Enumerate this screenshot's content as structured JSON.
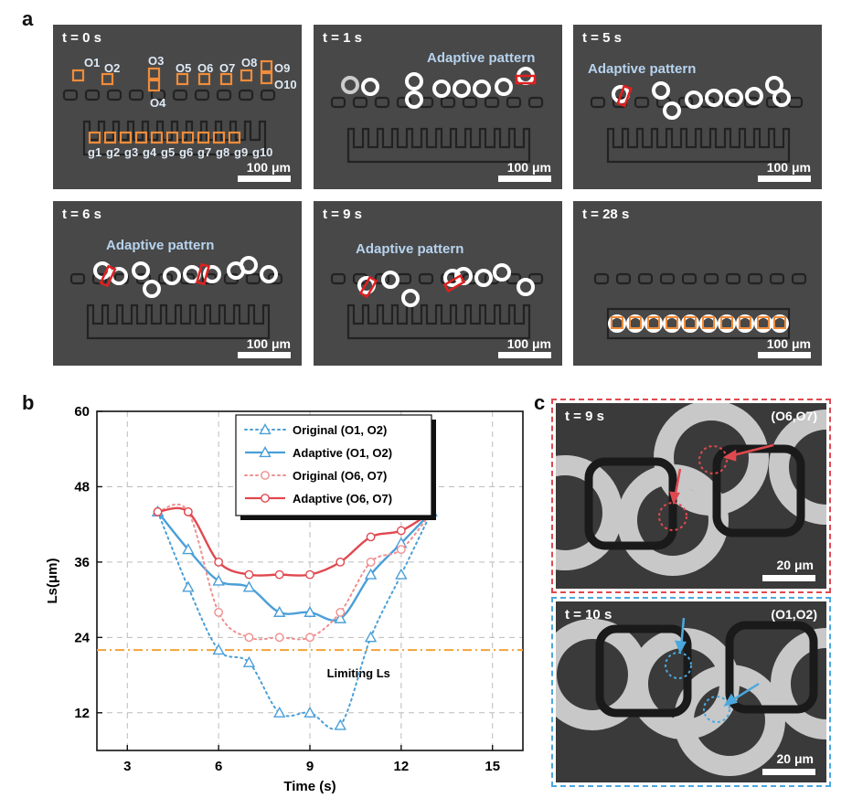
{
  "panel_letters": {
    "a": "a",
    "b": "b",
    "c": "c"
  },
  "panel_a": {
    "frames": [
      {
        "time": "t = 0 s",
        "label": "",
        "scale": "100 μm"
      },
      {
        "time": "t = 1 s",
        "label": "Adaptive pattern",
        "scale": "100 μm"
      },
      {
        "time": "t = 5 s",
        "label": "Adaptive pattern",
        "scale": "100 μm"
      },
      {
        "time": "t = 6 s",
        "label": "Adaptive pattern",
        "scale": "100 μm"
      },
      {
        "time": "t = 9 s",
        "label": "Adaptive pattern",
        "scale": "100 μm"
      },
      {
        "time": "t = 28 s",
        "label": "",
        "scale": "100 μm"
      }
    ],
    "object_labels": [
      "O1",
      "O2",
      "O3",
      "O4",
      "O5",
      "O6",
      "O7",
      "O8",
      "O9",
      "O10"
    ],
    "gap_labels": [
      "g1",
      "g2",
      "g3",
      "g4",
      "g5",
      "g6",
      "g7",
      "g8",
      "g9",
      "g10"
    ],
    "colors": {
      "box": "#f08c3a",
      "bar": "#e02020",
      "ring": "#ffffff",
      "background": "#484848"
    }
  },
  "panel_c": {
    "top": {
      "time": "t = 9 s",
      "pair": "(O6,O7)",
      "scale": "20 μm",
      "frame_color": "#e0494f"
    },
    "bottom": {
      "time": "t = 10 s",
      "pair": "(O1,O2)",
      "scale": "20 μm",
      "frame_color": "#4aa8df"
    }
  },
  "chart_data": {
    "type": "line",
    "title": "",
    "xlabel": "Time (s)",
    "ylabel": "Ls(μm)",
    "xlim": [
      2,
      16
    ],
    "ylim": [
      6,
      60
    ],
    "xticks": [
      3,
      6,
      9,
      12,
      15
    ],
    "yticks": [
      12,
      24,
      36,
      48,
      60
    ],
    "grid": true,
    "legend_position": "top-center",
    "series": [
      {
        "name": "Original (O1, O2)",
        "style": "dotted",
        "marker": "triangle",
        "color": "#4a9fd8",
        "x": [
          4,
          5,
          6,
          7,
          8,
          9,
          10,
          11,
          12,
          13
        ],
        "y": [
          44,
          32,
          22,
          20,
          12,
          12,
          10,
          24,
          34,
          44
        ]
      },
      {
        "name": "Adaptive (O1, O2)",
        "style": "solid",
        "marker": "triangle",
        "color": "#4a9fd8",
        "x": [
          4,
          5,
          6,
          7,
          8,
          9,
          10,
          11,
          12,
          13
        ],
        "y": [
          44,
          38,
          33,
          32,
          28,
          28,
          27,
          34,
          39,
          44
        ]
      },
      {
        "name": "Original (O6, O7)",
        "style": "dotted",
        "marker": "circle",
        "color": "#ef8f8f",
        "x": [
          4,
          5,
          6,
          7,
          8,
          9,
          10,
          11,
          12,
          13
        ],
        "y": [
          44,
          44,
          28,
          24,
          24,
          24,
          28,
          36,
          38,
          44
        ]
      },
      {
        "name": "Adaptive (O6, O7)",
        "style": "solid",
        "marker": "circle",
        "color": "#e0484f",
        "x": [
          4,
          5,
          6,
          7,
          8,
          9,
          10,
          11,
          12,
          13
        ],
        "y": [
          44,
          44,
          36,
          34,
          34,
          34,
          36,
          40,
          41,
          44
        ]
      }
    ],
    "reference_line": {
      "y": 22,
      "label": "Limiting Ls",
      "color": "#f2a23a"
    }
  }
}
